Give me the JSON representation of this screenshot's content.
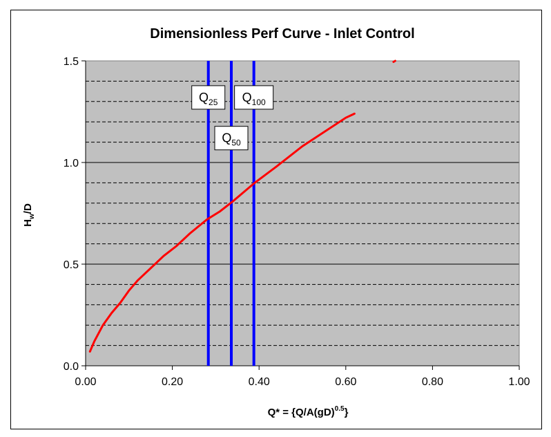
{
  "chart_data": {
    "type": "line",
    "title": "Dimensionless Perf Curve - Inlet Control",
    "xlabel": {
      "main": "Q* = {Q/A(gD)",
      "sup": "0.5",
      "tail": "}"
    },
    "ylabel": {
      "main": "H",
      "sub": "w",
      "tail": "/D"
    },
    "xlim": [
      0,
      1.0
    ],
    "ylim": [
      0,
      1.5
    ],
    "x_ticks": [
      0,
      0.2,
      0.4,
      0.6,
      0.8,
      1.0
    ],
    "x_tick_labels": [
      "0.00",
      "0.20",
      "0.40",
      "0.60",
      "0.80",
      "1.00"
    ],
    "y_ticks": [
      0,
      0.5,
      1.0,
      1.5
    ],
    "y_tick_labels": [
      "0.0",
      "0.5",
      "1.0",
      "1.5"
    ],
    "minor_gridlines_y": [
      0.1,
      0.2,
      0.3,
      0.4,
      0.6,
      0.7,
      0.8,
      0.9,
      1.1,
      1.2,
      1.3,
      1.4
    ],
    "major_gridlines_y": [
      0.5,
      1.0
    ],
    "plot_background": "#c0c0c0",
    "series": [
      {
        "color": "#ff0000",
        "points": [
          [
            0.01,
            0.07
          ],
          [
            0.02,
            0.12
          ],
          [
            0.04,
            0.2
          ],
          [
            0.06,
            0.26
          ],
          [
            0.08,
            0.31
          ],
          [
            0.1,
            0.37
          ],
          [
            0.12,
            0.42
          ],
          [
            0.15,
            0.48
          ],
          [
            0.18,
            0.54
          ],
          [
            0.21,
            0.59
          ],
          [
            0.24,
            0.65
          ],
          [
            0.28,
            0.72
          ],
          [
            0.31,
            0.76
          ],
          [
            0.34,
            0.81
          ],
          [
            0.39,
            0.9
          ],
          [
            0.44,
            0.98
          ],
          [
            0.5,
            1.08
          ],
          [
            0.55,
            1.15
          ],
          [
            0.6,
            1.22
          ],
          [
            0.62,
            1.24
          ]
        ]
      },
      {
        "color": "#ff0000",
        "points": [
          [
            0.71,
            1.495
          ],
          [
            0.714,
            1.5
          ]
        ]
      }
    ],
    "vertical_lines": [
      {
        "x": 0.283,
        "color": "#0000ff",
        "label_main": "Q",
        "label_sub": "25",
        "label_y": 1.32
      },
      {
        "x": 0.336,
        "color": "#0000ff",
        "label_main": "Q",
        "label_sub": "50",
        "label_y": 1.12
      },
      {
        "x": 0.388,
        "color": "#0000ff",
        "label_main": "Q",
        "label_sub": "100",
        "label_y": 1.32
      }
    ]
  }
}
